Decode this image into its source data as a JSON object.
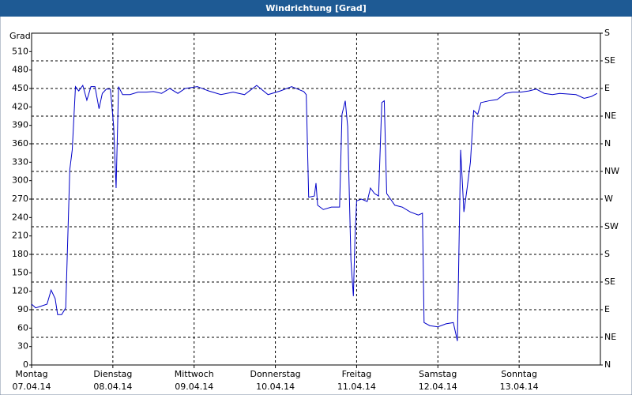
{
  "chart_data": {
    "type": "line",
    "title": "Windrichtung [Grad]",
    "ylabel": "Grad",
    "xlim": [
      0,
      7
    ],
    "xticks": [
      {
        "value": 0,
        "label": "Montag",
        "date": "07.04.14"
      },
      {
        "value": 1,
        "label": "Dienstag",
        "date": "08.04.14"
      },
      {
        "value": 2,
        "label": "Mittwoch",
        "date": "09.04.14"
      },
      {
        "value": 3,
        "label": "Donnerstag",
        "date": "10.04.14"
      },
      {
        "value": 4,
        "label": "Freitag",
        "date": "11.04.14"
      },
      {
        "value": 5,
        "label": "Samstag",
        "date": "12.04.14"
      },
      {
        "value": 6,
        "label": "Sonntag",
        "date": "13.04.14"
      }
    ],
    "ylim": [
      0,
      540
    ],
    "yticks": [
      0,
      30,
      60,
      90,
      120,
      150,
      180,
      210,
      240,
      270,
      300,
      330,
      360,
      390,
      420,
      450,
      480,
      510
    ],
    "y2lim": [
      0,
      540
    ],
    "y2ticks": [
      {
        "value": 0,
        "label": "N"
      },
      {
        "value": 45,
        "label": "NE"
      },
      {
        "value": 90,
        "label": "E"
      },
      {
        "value": 135,
        "label": "SE"
      },
      {
        "value": 180,
        "label": "S"
      },
      {
        "value": 225,
        "label": "SW"
      },
      {
        "value": 270,
        "label": "W"
      },
      {
        "value": 315,
        "label": "NW"
      },
      {
        "value": 360,
        "label": "N"
      },
      {
        "value": 405,
        "label": "NE"
      },
      {
        "value": 450,
        "label": "E"
      },
      {
        "value": 495,
        "label": "SE"
      },
      {
        "value": 540,
        "label": "S"
      }
    ],
    "grid": true,
    "color": "#0000c8",
    "x": [
      0,
      0.05,
      0.1,
      0.19,
      0.24,
      0.29,
      0.32,
      0.37,
      0.42,
      0.47,
      0.5,
      0.54,
      0.58,
      0.63,
      0.68,
      0.73,
      0.78,
      0.83,
      0.87,
      0.92,
      0.97,
      1.01,
      1.04,
      1.07,
      1.12,
      1.21,
      1.31,
      1.41,
      1.5,
      1.6,
      1.7,
      1.8,
      1.89,
      2.04,
      2.18,
      2.33,
      2.48,
      2.62,
      2.77,
      2.91,
      3.06,
      3.2,
      3.35,
      3.38,
      3.41,
      3.48,
      3.5,
      3.52,
      3.59,
      3.69,
      3.79,
      3.82,
      3.86,
      3.89,
      3.93,
      3.96,
      3.98,
      4.0,
      4.06,
      4.13,
      4.17,
      4.22,
      4.27,
      4.31,
      4.34,
      4.37,
      4.47,
      4.56,
      4.66,
      4.76,
      4.81,
      4.83,
      4.9,
      5.0,
      5.1,
      5.19,
      5.24,
      5.28,
      5.32,
      5.36,
      5.4,
      5.44,
      5.49,
      5.53,
      5.63,
      5.73,
      5.83,
      5.92,
      6.02,
      6.12,
      6.21,
      6.31,
      6.41,
      6.5,
      6.6,
      6.7,
      6.8,
      6.89,
      6.96
    ],
    "values": [
      99,
      93,
      95,
      99,
      122,
      108,
      82,
      82,
      93,
      318,
      350,
      453,
      446,
      455,
      431,
      453,
      453,
      417,
      442,
      449,
      449,
      388,
      288,
      453,
      440,
      440,
      444,
      444,
      445,
      442,
      450,
      442,
      450,
      453,
      446,
      440,
      444,
      440,
      455,
      440,
      446,
      453,
      445,
      440,
      273,
      275,
      296,
      260,
      253,
      257,
      257,
      408,
      430,
      388,
      170,
      112,
      208,
      267,
      270,
      266,
      288,
      279,
      275,
      427,
      430,
      279,
      260,
      257,
      249,
      244,
      247,
      69,
      64,
      62,
      67,
      69,
      39,
      350,
      249,
      288,
      330,
      414,
      408,
      427,
      430,
      432,
      442,
      444,
      444,
      446,
      449,
      442,
      440,
      442,
      441,
      440,
      434,
      437,
      442
    ]
  }
}
